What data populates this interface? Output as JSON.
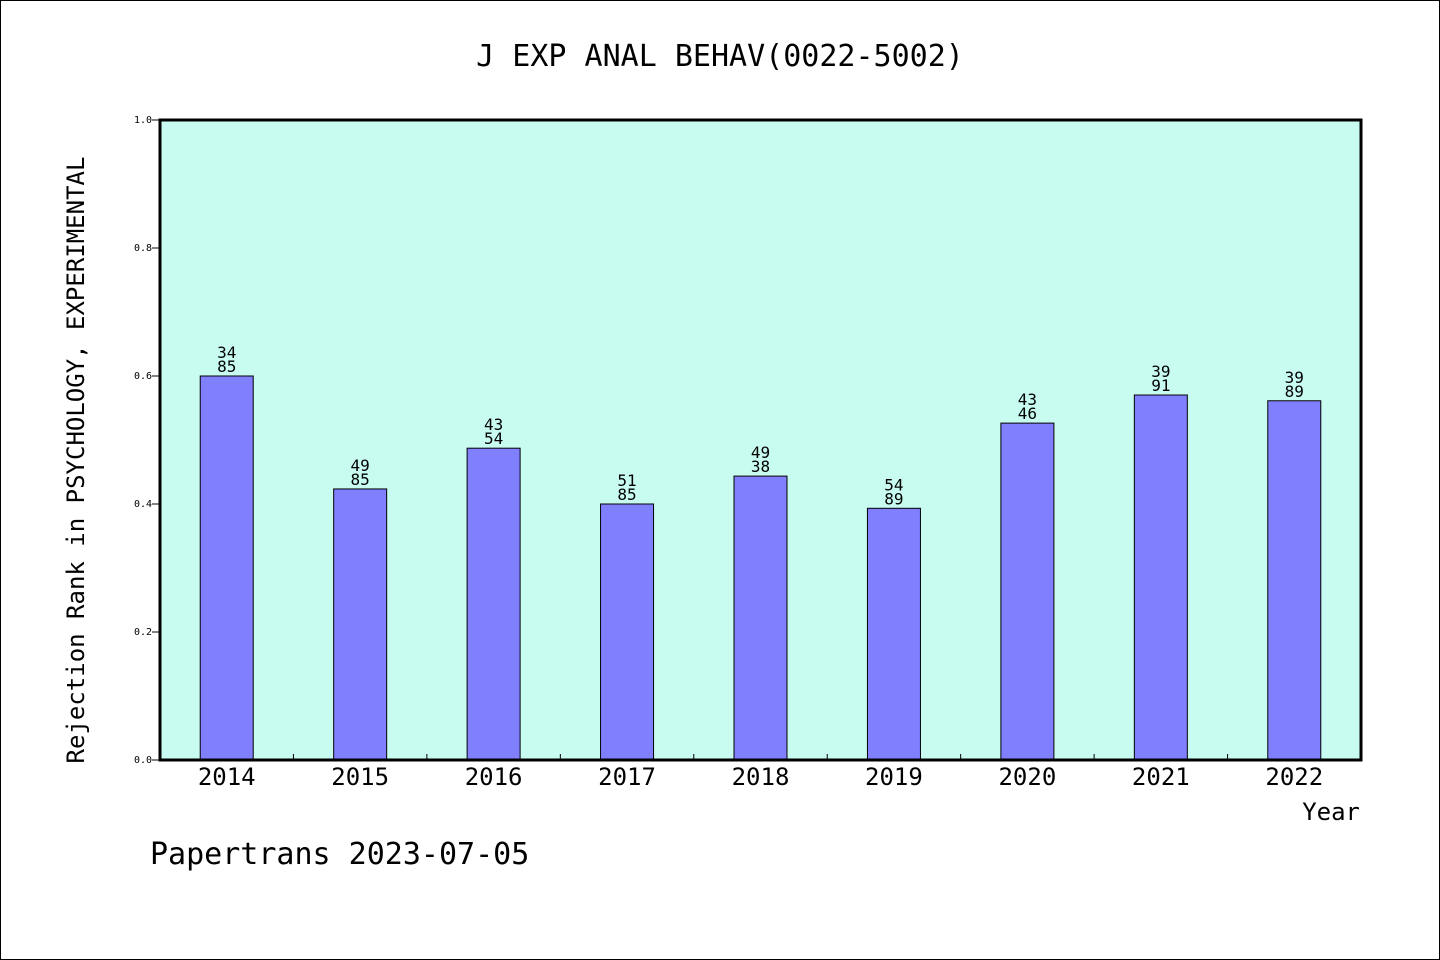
{
  "chart_data": {
    "type": "bar",
    "title": "J EXP ANAL BEHAV(0022-5002)",
    "xlabel": "Year",
    "ylabel": "Rejection Rank in PSYCHOLOGY, EXPERIMENTAL",
    "ylim": [
      0,
      1.0
    ],
    "yticks": [
      "0.0",
      "0.2",
      "0.4",
      "0.6",
      "0.8",
      "1.0"
    ],
    "categories": [
      "2014",
      "2015",
      "2016",
      "2017",
      "2018",
      "2019",
      "2020",
      "2021",
      "2022"
    ],
    "values": [
      0.6,
      0.4235,
      0.4872,
      0.4,
      0.4436,
      0.3933,
      0.5264,
      0.5703,
      0.5613
    ],
    "labels": [
      [
        "34",
        "85"
      ],
      [
        "49",
        "85"
      ],
      [
        "43",
        "54"
      ],
      [
        "51",
        "85"
      ],
      [
        "49",
        "38"
      ],
      [
        "54",
        "89"
      ],
      [
        "43",
        "46"
      ],
      [
        "39",
        "91"
      ],
      [
        "39",
        "89"
      ]
    ],
    "grid": false,
    "colors": {
      "plot_bg": "#c8fcf0",
      "bar": "#8080ff",
      "bar_edge": "#000000"
    }
  },
  "footer": {
    "text": "Papertrans 2023-07-05"
  }
}
